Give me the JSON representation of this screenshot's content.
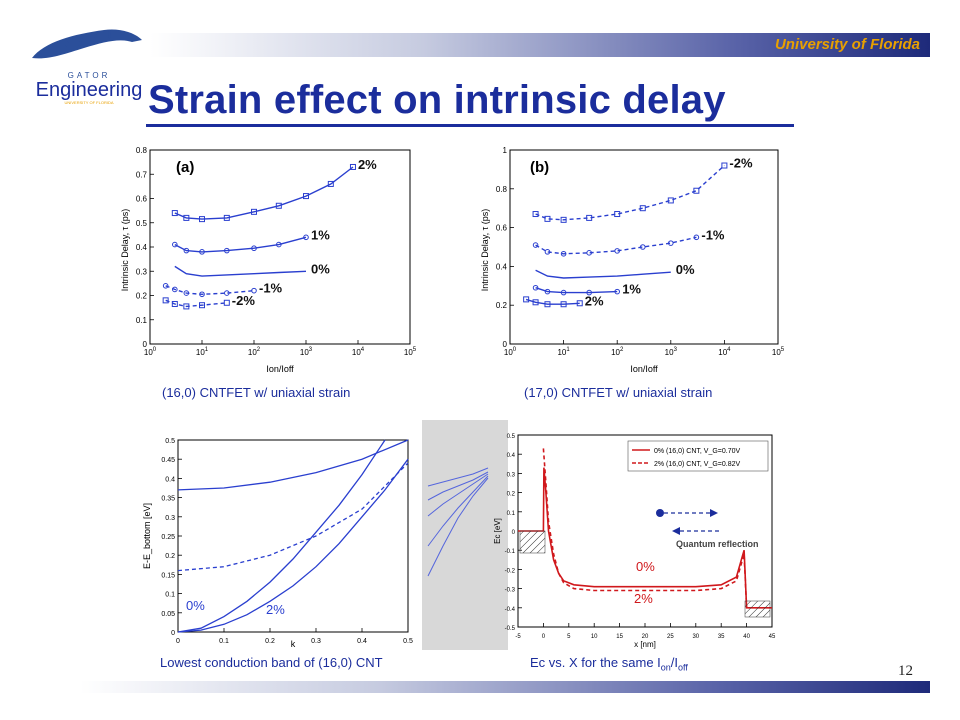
{
  "header": {
    "institution": "University of Florida",
    "logo_text": "Engineering",
    "logo_subtext": "GATOR",
    "logo_small": "UNIVERSITY OF FLORIDA"
  },
  "slide": {
    "title": "Strain effect on intrinsic delay",
    "page_number": "12"
  },
  "captions": {
    "a": "(16,0) CNTFET w/ uniaxial strain",
    "b": "(17,0) CNTFET w/ uniaxial strain",
    "c": "Lowest conduction band of (16,0) CNT",
    "d_prefix": "Ec vs. X for the same I",
    "d_sub1": "on",
    "d_mid": "/I",
    "d_sub2": "off"
  },
  "colors": {
    "title": "#1b2d9c",
    "uf_orange": "#e8a000",
    "curve_blue": "#2a3fcf",
    "curve_red": "#d0181c"
  },
  "chart_data": [
    {
      "type": "line",
      "panel_label": "(a)",
      "xlabel": "Ion/Ioff",
      "ylabel": "Intrinsic Delay, τ (ps)",
      "x_scale": "log",
      "xlim": [
        1,
        100000
      ],
      "ylim": [
        0,
        0.8
      ],
      "x_ticks": [
        "10^0",
        "10^1",
        "10^2",
        "10^3",
        "10^4",
        "10^5"
      ],
      "y_ticks": [
        "0",
        "0.1",
        "0.2",
        "0.3",
        "0.4",
        "0.5",
        "0.6",
        "0.7",
        "0.8"
      ],
      "series": [
        {
          "name": "2%",
          "marker": "square",
          "dash": false,
          "x": [
            3,
            5,
            10,
            30,
            100,
            300,
            1000,
            3000,
            8000
          ],
          "y": [
            0.54,
            0.52,
            0.515,
            0.52,
            0.545,
            0.57,
            0.61,
            0.66,
            0.73
          ]
        },
        {
          "name": "1%",
          "marker": "circle",
          "dash": false,
          "x": [
            3,
            5,
            10,
            30,
            100,
            300,
            1000
          ],
          "y": [
            0.41,
            0.385,
            0.38,
            0.385,
            0.395,
            0.41,
            0.44
          ]
        },
        {
          "name": "0%",
          "marker": "none",
          "dash": false,
          "x": [
            3,
            5,
            10,
            30,
            100,
            300,
            1000
          ],
          "y": [
            0.32,
            0.29,
            0.28,
            0.285,
            0.29,
            0.295,
            0.3
          ]
        },
        {
          "name": "-1%",
          "marker": "circle",
          "dash": true,
          "x": [
            2,
            3,
            5,
            10,
            30,
            100
          ],
          "y": [
            0.24,
            0.225,
            0.21,
            0.205,
            0.21,
            0.22
          ]
        },
        {
          "name": "-2%",
          "marker": "square",
          "dash": true,
          "x": [
            2,
            3,
            5,
            10,
            30
          ],
          "y": [
            0.18,
            0.165,
            0.155,
            0.16,
            0.17
          ]
        }
      ]
    },
    {
      "type": "line",
      "panel_label": "(b)",
      "xlabel": "Ion/Ioff",
      "ylabel": "Intrinsic Delay, τ (ps)",
      "x_scale": "log",
      "xlim": [
        1,
        100000
      ],
      "ylim": [
        0,
        1
      ],
      "x_ticks": [
        "10^0",
        "10^1",
        "10^2",
        "10^3",
        "10^4",
        "10^5"
      ],
      "y_ticks": [
        "0",
        "0.2",
        "0.4",
        "0.6",
        "0.8",
        "1"
      ],
      "series": [
        {
          "name": "-2%",
          "marker": "square",
          "dash": true,
          "x": [
            3,
            5,
            10,
            30,
            100,
            300,
            1000,
            3000,
            10000
          ],
          "y": [
            0.67,
            0.645,
            0.64,
            0.65,
            0.67,
            0.7,
            0.74,
            0.79,
            0.92
          ]
        },
        {
          "name": "-1%",
          "marker": "circle",
          "dash": true,
          "x": [
            3,
            5,
            10,
            30,
            100,
            300,
            1000,
            3000
          ],
          "y": [
            0.51,
            0.475,
            0.465,
            0.47,
            0.48,
            0.5,
            0.52,
            0.55
          ]
        },
        {
          "name": "0%",
          "marker": "none",
          "dash": false,
          "x": [
            3,
            5,
            10,
            30,
            100,
            300,
            1000
          ],
          "y": [
            0.38,
            0.35,
            0.34,
            0.345,
            0.35,
            0.36,
            0.37
          ]
        },
        {
          "name": "1%",
          "marker": "circle",
          "dash": false,
          "x": [
            3,
            5,
            10,
            30,
            100
          ],
          "y": [
            0.29,
            0.27,
            0.265,
            0.265,
            0.27
          ]
        },
        {
          "name": "2%",
          "marker": "square",
          "dash": false,
          "x": [
            2,
            3,
            5,
            10,
            20
          ],
          "y": [
            0.23,
            0.215,
            0.205,
            0.205,
            0.21
          ]
        }
      ]
    },
    {
      "type": "line",
      "xlabel": "k",
      "ylabel": "E-E_bottom [eV]",
      "xlim": [
        0,
        0.5
      ],
      "ylim": [
        0,
        0.5
      ],
      "x_ticks": [
        "0",
        "0.1",
        "0.2",
        "0.3",
        "0.4",
        "0.5"
      ],
      "y_ticks": [
        "0",
        "0.05",
        "0.1",
        "0.15",
        "0.2",
        "0.25",
        "0.3",
        "0.35",
        "0.4",
        "0.45",
        "0.5"
      ],
      "labels": [
        "0%",
        "2%"
      ],
      "series": [
        {
          "name": "0%",
          "dash": false,
          "x": [
            0,
            0.1,
            0.2,
            0.3,
            0.4,
            0.5
          ],
          "y": [
            0.37,
            0.375,
            0.39,
            0.415,
            0.45,
            0.5
          ]
        },
        {
          "name": "0%",
          "dash": false,
          "x": [
            0,
            0.05,
            0.1,
            0.15,
            0.2,
            0.25,
            0.3,
            0.35,
            0.4,
            0.45
          ],
          "y": [
            0,
            0.01,
            0.04,
            0.08,
            0.13,
            0.19,
            0.26,
            0.33,
            0.41,
            0.5
          ]
        },
        {
          "name": "2%",
          "dash": true,
          "x": [
            0,
            0.1,
            0.2,
            0.3,
            0.4,
            0.5
          ],
          "y": [
            0.16,
            0.17,
            0.2,
            0.25,
            0.32,
            0.44
          ]
        },
        {
          "name": "2%",
          "dash": false,
          "x": [
            0,
            0.05,
            0.1,
            0.15,
            0.2,
            0.25,
            0.3,
            0.35,
            0.4,
            0.45,
            0.5
          ],
          "y": [
            0,
            0.005,
            0.02,
            0.045,
            0.08,
            0.12,
            0.17,
            0.23,
            0.3,
            0.37,
            0.45
          ]
        }
      ]
    },
    {
      "type": "line",
      "xlabel": "x [nm]",
      "ylabel": "Ec [eV]",
      "xlim": [
        -5,
        45
      ],
      "ylim": [
        -0.5,
        0.5
      ],
      "x_ticks": [
        "-5",
        "0",
        "5",
        "10",
        "15",
        "20",
        "25",
        "30",
        "35",
        "40",
        "45"
      ],
      "y_ticks": [
        "-0.5",
        "-0.4",
        "-0.3",
        "-0.2",
        "-0.1",
        "0",
        "0.1",
        "0.2",
        "0.3",
        "0.4",
        "0.5"
      ],
      "legend": "top-right",
      "labels": [
        "0%",
        "2%"
      ],
      "annotation": "Quantum reflection",
      "series": [
        {
          "name": "0% (16,0) CNT, V_G=0.70V",
          "dash": false,
          "x": [
            -5,
            0,
            0.1,
            0.5,
            1,
            2,
            3,
            4,
            6,
            10,
            20,
            30,
            35,
            38,
            39.5,
            40,
            45
          ],
          "y": [
            0,
            0,
            0.33,
            0.2,
            0.0,
            -0.15,
            -0.22,
            -0.26,
            -0.28,
            -0.29,
            -0.29,
            -0.29,
            -0.28,
            -0.24,
            -0.1,
            -0.4,
            -0.4
          ]
        },
        {
          "name": "2% (16,0) CNT, V_G=0.82V",
          "dash": true,
          "x": [
            0,
            0.5,
            1,
            2,
            3,
            4,
            6,
            10,
            20,
            30,
            35,
            38,
            39.5,
            40
          ],
          "y": [
            0.43,
            0.25,
            0.05,
            -0.12,
            -0.22,
            -0.27,
            -0.3,
            -0.31,
            -0.31,
            -0.31,
            -0.3,
            -0.26,
            -0.12,
            -0.4
          ]
        }
      ]
    }
  ]
}
